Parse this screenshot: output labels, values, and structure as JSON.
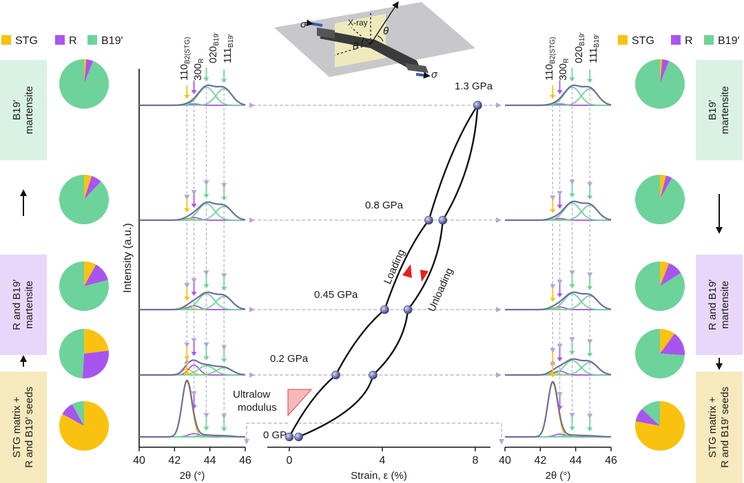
{
  "legend": {
    "items": [
      {
        "key": "stg",
        "label": "STG",
        "color": "#F9C20F"
      },
      {
        "key": "r",
        "label": "R",
        "color": "#A855F0"
      },
      {
        "key": "b19",
        "label": "B19′",
        "color": "#6DD39A"
      }
    ]
  },
  "boxes": {
    "left": [
      {
        "text": "B19′\nmartensite",
        "color": "#D9F2E3"
      },
      {
        "text": "R and B19′\nmartensite",
        "color": "#E9D7FB"
      },
      {
        "text": "STG matrix +\nR and B19′ seeds",
        "color": "#F6E9BD"
      }
    ],
    "right": [
      {
        "text": "B19′\nmartensite",
        "color": "#D9F2E3"
      },
      {
        "text": "R and B19′\nmartensite",
        "color": "#E9D7FB"
      },
      {
        "text": "STG matrix +\nR and B19′ seeds",
        "color": "#F6E9BD"
      }
    ]
  },
  "peaks": {
    "p110_main": "110",
    "p110_sub": "B2(STG)",
    "p300_main": "300",
    "p300_sub": "R",
    "p020_main": "020",
    "p020_sub": "B19′",
    "p111_main": "111",
    "p111_sub": "B19′"
  },
  "schematic": {
    "xray": "X-ray",
    "sigma": "σ",
    "theta": "θ"
  },
  "curve_labels": {
    "loading": "Loading",
    "unloading": "Unloading",
    "ultralow": "Ultralow",
    "modulus": "modulus"
  },
  "chart_data": [
    {
      "type": "pie",
      "id": "left-pies",
      "series_names": [
        "STG",
        "R",
        "B19′"
      ],
      "pies": [
        {
          "stage": "1.3 GPa",
          "values": [
            1.5,
            4.5,
            94
          ]
        },
        {
          "stage": "0.8 GPa",
          "values": [
            5,
            7,
            88
          ]
        },
        {
          "stage": "0.45 GPa",
          "values": [
            8,
            13,
            79
          ]
        },
        {
          "stage": "0.2 GPa",
          "values": [
            23,
            28,
            49
          ]
        },
        {
          "stage": "0 GPa",
          "values": [
            83,
            9,
            8
          ]
        }
      ]
    },
    {
      "type": "pie",
      "id": "right-pies",
      "series_names": [
        "STG",
        "R",
        "B19′"
      ],
      "pies": [
        {
          "stage": "1.3 GPa",
          "values": [
            1.5,
            4.5,
            94
          ]
        },
        {
          "stage": "0.8 GPa",
          "values": [
            4,
            4,
            92
          ]
        },
        {
          "stage": "0.45 GPa",
          "values": [
            6,
            10,
            84
          ]
        },
        {
          "stage": "0.2 GPa",
          "values": [
            10,
            16,
            74
          ]
        },
        {
          "stage": "0 GPa",
          "values": [
            78,
            9,
            13
          ]
        }
      ]
    },
    {
      "type": "line",
      "id": "left-xrd",
      "xlabel": "2θ (°)",
      "ylabel": "Intensity (a.u.)",
      "xlim": [
        40,
        46
      ],
      "xticks": [
        40,
        42,
        44,
        46
      ],
      "peak_positions": {
        "stg": 42.7,
        "r": 43.1,
        "b19_020": 43.8,
        "b19_111": 44.8
      },
      "patterns": [
        {
          "stage": "1.3 GPa",
          "stg": 0.02,
          "r": 0.04,
          "b19_020": 0.55,
          "b19_111": 0.5
        },
        {
          "stage": "0.8 GPa",
          "stg": 0.05,
          "r": 0.08,
          "b19_020": 0.5,
          "b19_111": 0.42
        },
        {
          "stage": "0.45 GPa",
          "stg": 0.07,
          "r": 0.12,
          "b19_020": 0.48,
          "b19_111": 0.4
        },
        {
          "stage": "0.2 GPa",
          "stg": 0.18,
          "r": 0.3,
          "b19_020": 0.28,
          "b19_111": 0.22
        },
        {
          "stage": "0 GPa",
          "stg": 1.0,
          "r": 0.06,
          "b19_020": 0.03,
          "b19_111": 0.02
        }
      ]
    },
    {
      "type": "line",
      "id": "right-xrd",
      "xlabel": "2θ (°)",
      "xlim": [
        40,
        46
      ],
      "xticks": [
        40,
        42,
        44,
        46
      ],
      "peak_positions": {
        "stg": 42.7,
        "r": 43.1,
        "b19_020": 43.8,
        "b19_111": 44.8
      },
      "patterns": [
        {
          "stage": "1.3 GPa",
          "stg": 0.02,
          "r": 0.04,
          "b19_020": 0.55,
          "b19_111": 0.5
        },
        {
          "stage": "0.8 GPa",
          "stg": 0.04,
          "r": 0.05,
          "b19_020": 0.52,
          "b19_111": 0.45
        },
        {
          "stage": "0.45 GPa",
          "stg": 0.05,
          "r": 0.08,
          "b19_020": 0.48,
          "b19_111": 0.42
        },
        {
          "stage": "0.2 GPa",
          "stg": 0.08,
          "r": 0.12,
          "b19_020": 0.44,
          "b19_111": 0.38
        },
        {
          "stage": "0 GPa",
          "stg": 0.98,
          "r": 0.05,
          "b19_020": 0.03,
          "b19_111": 0.02
        }
      ]
    },
    {
      "type": "line",
      "id": "stress-strain",
      "xlabel": "Strain, ε (%)",
      "xlim": [
        -1,
        9
      ],
      "xticks": [
        0,
        4,
        8
      ],
      "stress_labels": [
        "1.3 GPa",
        "0.8 GPa",
        "0.45 GPa",
        "0.2 GPa",
        "0 GPa"
      ],
      "series": [
        {
          "name": "Loading",
          "points": [
            [
              0,
              0
            ],
            [
              2,
              0.2
            ],
            [
              4.1,
              0.45
            ],
            [
              6,
              0.8
            ],
            [
              8.1,
              1.3
            ]
          ]
        },
        {
          "name": "Unloading",
          "points": [
            [
              8.1,
              1.3
            ],
            [
              6.6,
              0.8
            ],
            [
              5.1,
              0.45
            ],
            [
              3.6,
              0.2
            ],
            [
              0.4,
              0
            ]
          ]
        }
      ]
    }
  ]
}
